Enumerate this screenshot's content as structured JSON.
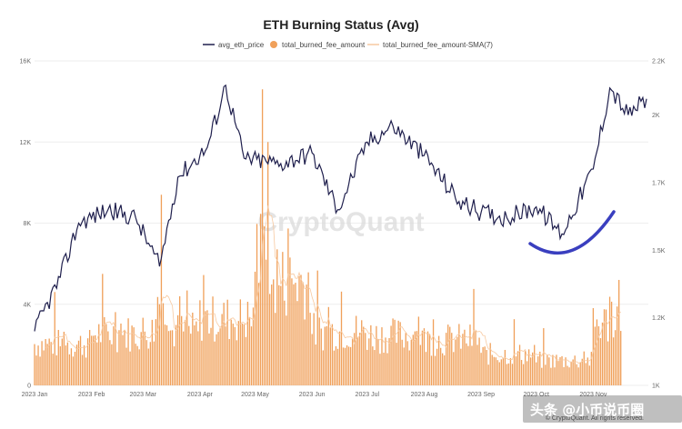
{
  "chart_data": {
    "type": "bar+line",
    "title": "ETH Burning Status (Avg)",
    "legend_placement": "top-center",
    "legend": [
      {
        "name": "avg_eth_price",
        "color": "#1f1f4d",
        "kind": "line"
      },
      {
        "name": "total_burned_fee_amount",
        "color": "#f0a05a",
        "kind": "bar"
      },
      {
        "name": "total_burned_fee_amount-SMA(7)",
        "color": "#f7c9a0",
        "kind": "line"
      }
    ],
    "x_ticks": [
      "2023 Jan",
      "2023 Feb",
      "2023 Mar",
      "2023 Apr",
      "2023 May",
      "2023 Jun",
      "2023 Jul",
      "2023 Aug",
      "2023 Sep",
      "2023 Oct",
      "2023 Nov"
    ],
    "y_left": {
      "range": [
        0,
        16000
      ],
      "ticks": [
        "0",
        "4K",
        "8K",
        "12K",
        "16K"
      ]
    },
    "y_right": {
      "range": [
        1000,
        2200
      ],
      "ticks": [
        "1K",
        "1.2K",
        "1.5K",
        "1.7K",
        "2K",
        "2.2K"
      ]
    },
    "grid": true,
    "bars_total_burned": {
      "months": [
        "Jan",
        "Feb",
        "Mar",
        "Apr",
        "May",
        "Jun",
        "Jul",
        "Aug",
        "Sep",
        "Oct",
        "Nov"
      ],
      "typical_daily": [
        2000,
        2500,
        2600,
        3200,
        5000,
        2600,
        2400,
        2200,
        1500,
        1200,
        3000
      ],
      "peaks": [
        {
          "date": "2023-03-11",
          "value": 9400
        },
        {
          "date": "2023-05-05",
          "value": 14600
        },
        {
          "date": "2023-05-08",
          "value": 12000
        },
        {
          "date": "2023-11-15",
          "value": 5200
        }
      ]
    },
    "series_eth_price": {
      "name": "avg_eth_price",
      "x": [
        "2023-01-01",
        "2023-01-15",
        "2023-01-25",
        "2023-02-10",
        "2023-02-25",
        "2023-03-10",
        "2023-03-20",
        "2023-04-05",
        "2023-04-15",
        "2023-04-25",
        "2023-05-15",
        "2023-06-01",
        "2023-06-15",
        "2023-07-01",
        "2023-07-15",
        "2023-08-01",
        "2023-08-20",
        "2023-09-01",
        "2023-09-15",
        "2023-10-01",
        "2023-10-15",
        "2023-11-01",
        "2023-11-10",
        "2023-11-20",
        "2023-11-30"
      ],
      "values": [
        1200,
        1400,
        1600,
        1650,
        1620,
        1440,
        1770,
        1880,
        2110,
        1840,
        1820,
        1860,
        1650,
        1900,
        1960,
        1850,
        1680,
        1640,
        1620,
        1660,
        1560,
        1800,
        2100,
        2000,
        2060
      ]
    },
    "sma_note": "follows bars"
  },
  "watermark": "CryptoQuant",
  "footer_text": "© CryptoQuant. All rights reserved.",
  "overlay_caption": "头条 @小币说币圈"
}
